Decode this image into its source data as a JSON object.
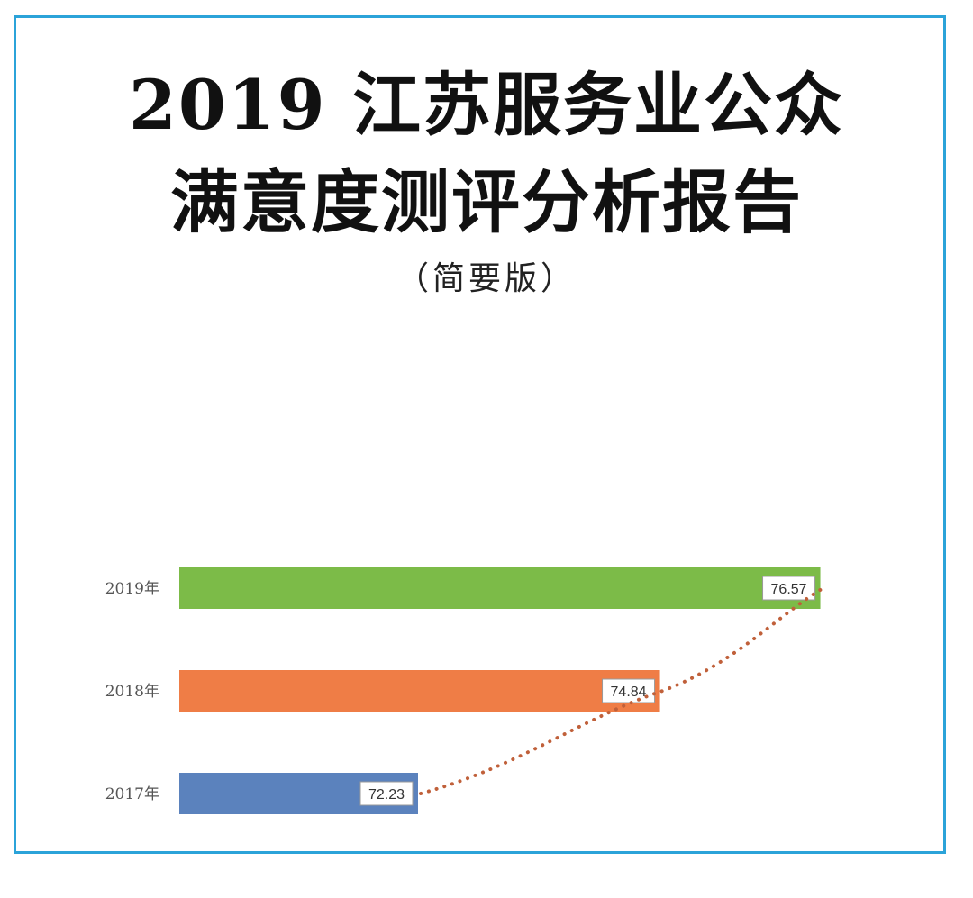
{
  "title_line1": "2019 江苏服务业公众",
  "title_line2": "满意度测评分析报告",
  "subtitle": "（简要版）",
  "colors": {
    "frame": "#2ba3d9",
    "bar_2019": "#7cbb48",
    "bar_2018": "#ef7d46",
    "bar_2017": "#5b82bd",
    "trend": "#c0603a"
  },
  "chart_data": {
    "type": "bar",
    "orientation": "horizontal",
    "categories": [
      "2019年",
      "2018年",
      "2017年"
    ],
    "values": [
      76.57,
      74.84,
      72.23
    ],
    "value_labels": [
      "76.57",
      "74.84",
      "72.23"
    ],
    "bar_colors": [
      "#7cbb48",
      "#ef7d46",
      "#5b82bd"
    ],
    "trend_line": "dotted",
    "grid": false,
    "legend": "none"
  }
}
